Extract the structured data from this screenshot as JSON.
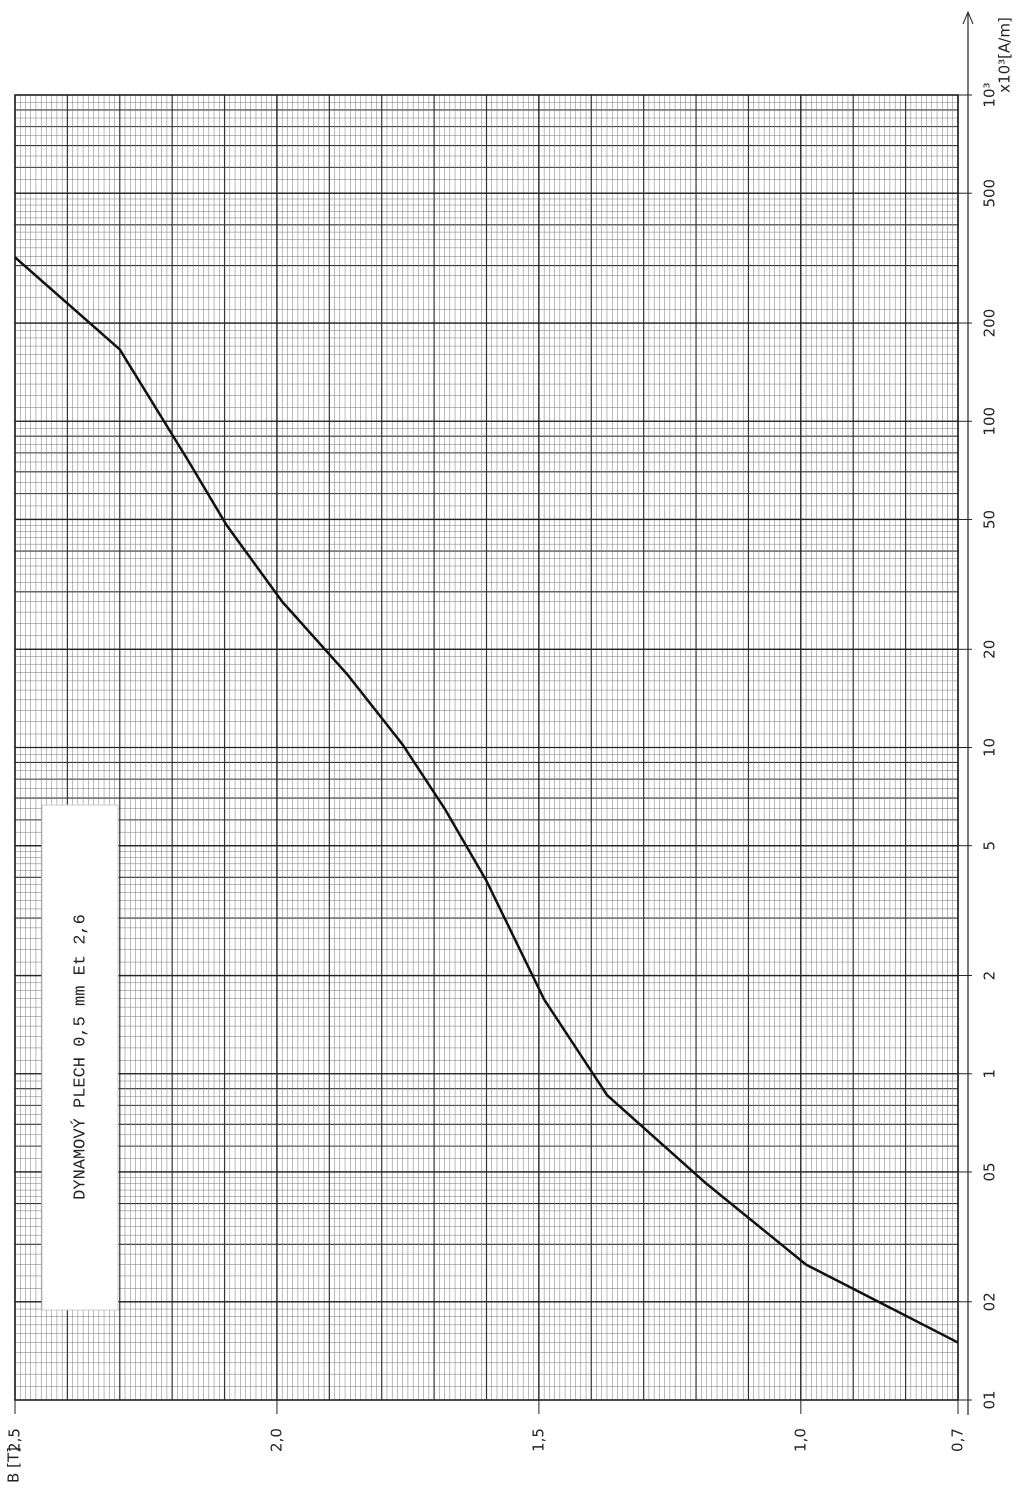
{
  "chart_data": {
    "type": "line",
    "title": "DYNAMOVÝ PLECH   0,5 mm Et 2,6",
    "x_label": "x10³[A/m]",
    "y_label": "B [T]",
    "xlog": true,
    "xlim": [
      0.1,
      1000
    ],
    "xticks": [
      {
        "value": 0.1,
        "label": "01"
      },
      {
        "value": 0.2,
        "label": "02"
      },
      {
        "value": 0.5,
        "label": "05"
      },
      1,
      2,
      5,
      10,
      20,
      50,
      100,
      200,
      500,
      {
        "value": 1000,
        "label": "10³"
      }
    ],
    "ylim": [
      0.7,
      2.5
    ],
    "yticks": [
      {
        "value": 2.5,
        "label": "2,5"
      },
      {
        "value": 2.0,
        "label": "2,0"
      },
      {
        "value": 1.5,
        "label": "1,5"
      },
      {
        "value": 1.0,
        "label": "1,0"
      },
      {
        "value": 0.7,
        "label": "0,7"
      }
    ],
    "grid": true,
    "series": [
      {
        "color": "#111111",
        "x": [
          0.15,
          0.26,
          0.46,
          0.86,
          1.69,
          3.9,
          6.5,
          10.2,
          16.7,
          28,
          48,
          76,
          166,
          318
        ],
        "values": [
          0.7,
          0.99,
          1.18,
          1.37,
          1.49,
          1.6,
          1.68,
          1.76,
          1.865,
          1.99,
          2.096,
          2.17,
          2.3,
          2.5
        ]
      }
    ]
  }
}
